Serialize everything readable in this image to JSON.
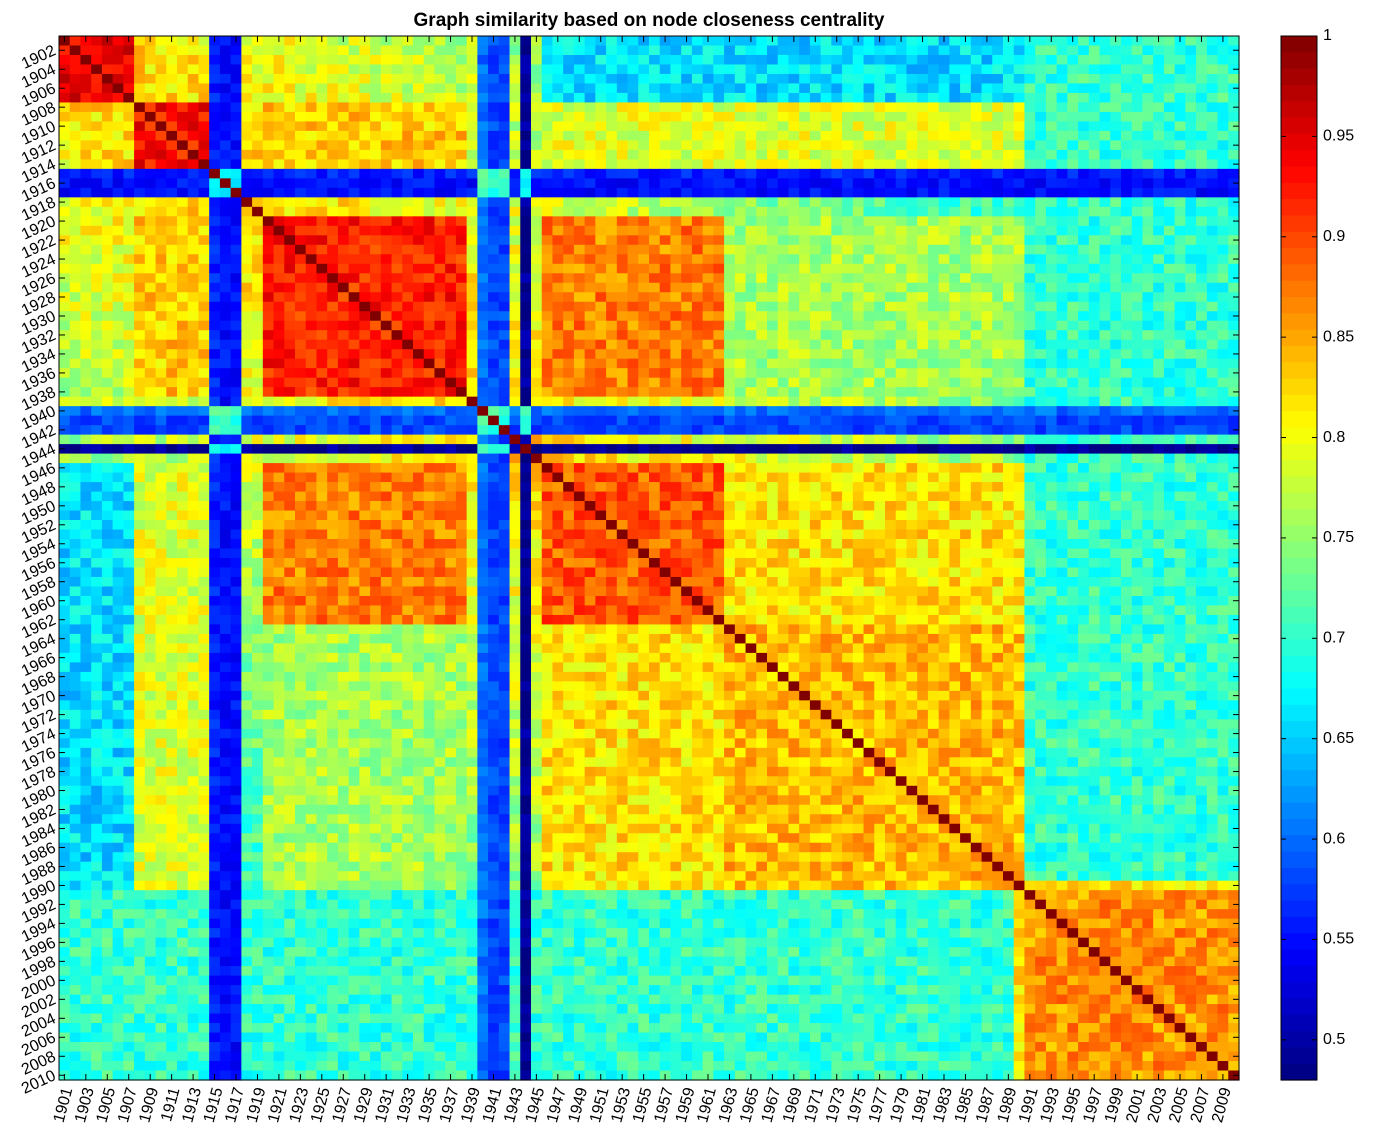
{
  "chart_data": {
    "type": "heatmap",
    "title": "Graph similarity based on node closeness centrality",
    "x_tick_labels": [
      "1901",
      "1903",
      "1905",
      "1907",
      "1909",
      "1911",
      "1913",
      "1915",
      "1917",
      "1919",
      "1921",
      "1923",
      "1925",
      "1927",
      "1929",
      "1931",
      "1933",
      "1935",
      "1937",
      "1939",
      "1941",
      "1943",
      "1945",
      "1947",
      "1949",
      "1951",
      "1953",
      "1955",
      "1957",
      "1959",
      "1961",
      "1963",
      "1965",
      "1967",
      "1969",
      "1971",
      "1973",
      "1975",
      "1977",
      "1979",
      "1981",
      "1983",
      "1985",
      "1987",
      "1989",
      "1991",
      "1993",
      "1995",
      "1997",
      "1999",
      "2001",
      "2003",
      "2005",
      "2007",
      "2009"
    ],
    "y_tick_labels": [
      "1902",
      "1904",
      "1906",
      "1908",
      "1910",
      "1912",
      "1914",
      "1916",
      "1918",
      "1920",
      "1922",
      "1924",
      "1926",
      "1928",
      "1930",
      "1932",
      "1934",
      "1936",
      "1938",
      "1940",
      "1942",
      "1944",
      "1946",
      "1948",
      "1950",
      "1952",
      "1954",
      "1956",
      "1958",
      "1960",
      "1962",
      "1964",
      "1966",
      "1968",
      "1970",
      "1972",
      "1974",
      "1976",
      "1978",
      "1980",
      "1982",
      "1984",
      "1986",
      "1988",
      "1990",
      "1992",
      "1994",
      "1996",
      "1998",
      "2000",
      "2002",
      "2004",
      "2006",
      "2008",
      "2010"
    ],
    "year_range": [
      1901,
      2010
    ],
    "diagonal_value": 1,
    "blocks": [
      {
        "years": [
          1901,
          1907
        ],
        "value": 0.95
      },
      {
        "years": [
          1908,
          1914
        ],
        "value": 0.93
      },
      {
        "years": [
          1920,
          1938
        ],
        "value": 0.92
      },
      {
        "years": [
          1946,
          1962
        ],
        "value": 0.89
      },
      {
        "years": [
          1963,
          1990
        ],
        "value": 0.84
      },
      {
        "years": [
          1991,
          2010
        ],
        "value": 0.86
      }
    ],
    "low_similarity_years": [
      {
        "year": 1915,
        "value": 0.56
      },
      {
        "year": 1916,
        "value": 0.55
      },
      {
        "year": 1917,
        "value": 0.55
      },
      {
        "year": 1940,
        "value": 0.6
      },
      {
        "year": 1941,
        "value": 0.58
      },
      {
        "year": 1942,
        "value": 0.58
      },
      {
        "year": 1944,
        "value": 0.49
      }
    ],
    "colorbar": {
      "colormap": "jet",
      "range": [
        0.48,
        1.0
      ],
      "ticks": [
        0.5,
        0.55,
        0.6,
        0.65,
        0.7,
        0.75,
        0.8,
        0.85,
        0.9,
        0.95,
        1
      ],
      "tick_labels": [
        "0.5",
        "0.55",
        "0.6",
        "0.65",
        "0.7",
        "0.75",
        "0.8",
        "0.85",
        "0.9",
        "0.95",
        "1"
      ]
    }
  }
}
